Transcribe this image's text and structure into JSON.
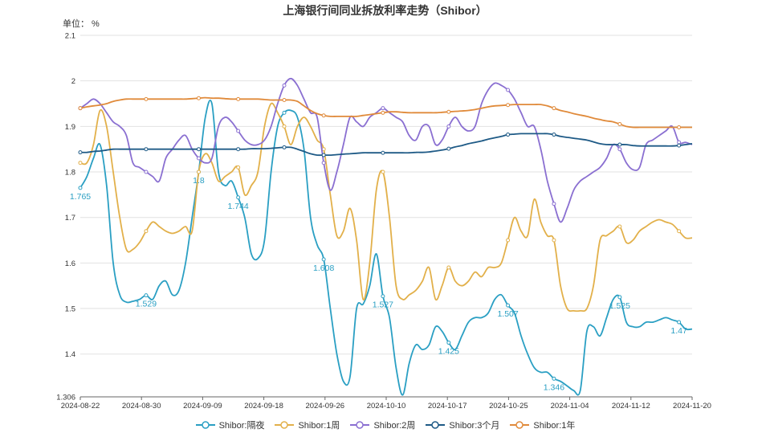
{
  "title": "上海银行间同业拆放利率走势（Shibor）",
  "unit": "单位： %",
  "chart_data": {
    "type": "line",
    "title": "上海银行间同业拆放利率走势（Shibor）",
    "ylabel": "单位： %",
    "ylim": [
      1.306,
      2.1
    ],
    "y_ticks": [
      "1.306",
      "1.4",
      "1.5",
      "1.6",
      "1.7",
      "1.8",
      "1.9",
      "2",
      "2.1"
    ],
    "x_ticks": [
      "2024-08-22",
      "2024-08-30",
      "2024-09-09",
      "2024-09-18",
      "2024-09-26",
      "2024-10-10",
      "2024-10-17",
      "2024-10-25",
      "2024-11-04",
      "2024-11-12",
      "2024-11-20"
    ],
    "grid": true,
    "legend_position": "bottom",
    "series": [
      {
        "name": "Shibor:隔夜",
        "color": "#2a9fc3",
        "values": [
          1.765,
          1.79,
          1.83,
          1.86,
          1.77,
          1.6,
          1.53,
          1.514,
          1.516,
          1.52,
          1.529,
          1.52,
          1.55,
          1.56,
          1.53,
          1.54,
          1.6,
          1.7,
          1.8,
          1.92,
          1.95,
          1.8,
          1.77,
          1.78,
          1.744,
          1.7,
          1.62,
          1.61,
          1.65,
          1.8,
          1.9,
          1.93,
          1.935,
          1.92,
          1.85,
          1.7,
          1.64,
          1.608,
          1.5,
          1.4,
          1.34,
          1.35,
          1.5,
          1.51,
          1.55,
          1.62,
          1.527,
          1.48,
          1.37,
          1.31,
          1.38,
          1.42,
          1.41,
          1.42,
          1.46,
          1.45,
          1.425,
          1.41,
          1.44,
          1.47,
          1.48,
          1.48,
          1.49,
          1.52,
          1.53,
          1.507,
          1.49,
          1.44,
          1.4,
          1.37,
          1.36,
          1.36,
          1.346,
          1.34,
          1.33,
          1.32,
          1.32,
          1.45,
          1.46,
          1.44,
          1.48,
          1.52,
          1.525,
          1.47,
          1.46,
          1.46,
          1.47,
          1.47,
          1.475,
          1.48,
          1.475,
          1.47,
          1.455,
          1.455
        ]
      },
      {
        "name": "Shibor:1周",
        "color": "#e2b04a",
        "values": [
          1.82,
          1.82,
          1.86,
          1.935,
          1.9,
          1.8,
          1.7,
          1.63,
          1.63,
          1.645,
          1.67,
          1.69,
          1.68,
          1.67,
          1.665,
          1.67,
          1.68,
          1.67,
          1.8,
          1.84,
          1.82,
          1.78,
          1.79,
          1.8,
          1.81,
          1.75,
          1.77,
          1.8,
          1.9,
          1.95,
          1.93,
          1.9,
          1.86,
          1.9,
          1.92,
          1.9,
          1.87,
          1.85,
          1.75,
          1.66,
          1.67,
          1.72,
          1.65,
          1.52,
          1.6,
          1.76,
          1.8,
          1.7,
          1.55,
          1.52,
          1.53,
          1.54,
          1.56,
          1.59,
          1.52,
          1.55,
          1.59,
          1.56,
          1.55,
          1.56,
          1.58,
          1.57,
          1.59,
          1.59,
          1.6,
          1.65,
          1.7,
          1.67,
          1.66,
          1.74,
          1.69,
          1.66,
          1.65,
          1.55,
          1.5,
          1.495,
          1.495,
          1.5,
          1.55,
          1.65,
          1.66,
          1.67,
          1.68,
          1.645,
          1.65,
          1.67,
          1.68,
          1.69,
          1.695,
          1.69,
          1.685,
          1.67,
          1.655,
          1.655
        ]
      },
      {
        "name": "Shibor:2周",
        "color": "#8a6fd1",
        "values": [
          1.94,
          1.95,
          1.96,
          1.95,
          1.93,
          1.91,
          1.9,
          1.88,
          1.82,
          1.81,
          1.8,
          1.79,
          1.78,
          1.83,
          1.85,
          1.87,
          1.88,
          1.85,
          1.83,
          1.82,
          1.83,
          1.9,
          1.92,
          1.91,
          1.89,
          1.87,
          1.86,
          1.86,
          1.87,
          1.9,
          1.95,
          1.99,
          2.005,
          1.99,
          1.96,
          1.93,
          1.92,
          1.82,
          1.76,
          1.8,
          1.86,
          1.92,
          1.91,
          1.9,
          1.92,
          1.93,
          1.94,
          1.93,
          1.92,
          1.91,
          1.88,
          1.87,
          1.9,
          1.9,
          1.86,
          1.87,
          1.9,
          1.92,
          1.9,
          1.89,
          1.9,
          1.95,
          1.98,
          1.995,
          1.99,
          1.98,
          1.96,
          1.93,
          1.9,
          1.9,
          1.85,
          1.78,
          1.73,
          1.69,
          1.72,
          1.76,
          1.78,
          1.79,
          1.8,
          1.81,
          1.83,
          1.86,
          1.85,
          1.82,
          1.805,
          1.81,
          1.86,
          1.87,
          1.88,
          1.89,
          1.9,
          1.865,
          1.865,
          1.86
        ]
      },
      {
        "name": "Shibor:3个月",
        "color": "#1e5a86",
        "values": [
          1.843,
          1.843,
          1.845,
          1.846,
          1.848,
          1.85,
          1.85,
          1.85,
          1.85,
          1.85,
          1.85,
          1.85,
          1.85,
          1.85,
          1.85,
          1.85,
          1.85,
          1.85,
          1.85,
          1.85,
          1.85,
          1.85,
          1.85,
          1.85,
          1.85,
          1.85,
          1.851,
          1.851,
          1.851,
          1.852,
          1.853,
          1.854,
          1.854,
          1.85,
          1.845,
          1.84,
          1.837,
          1.837,
          1.837,
          1.838,
          1.839,
          1.84,
          1.841,
          1.842,
          1.842,
          1.842,
          1.842,
          1.842,
          1.842,
          1.842,
          1.842,
          1.843,
          1.843,
          1.844,
          1.846,
          1.848,
          1.851,
          1.855,
          1.858,
          1.862,
          1.865,
          1.868,
          1.872,
          1.875,
          1.878,
          1.882,
          1.883,
          1.884,
          1.884,
          1.884,
          1.884,
          1.884,
          1.882,
          1.878,
          1.876,
          1.874,
          1.872,
          1.87,
          1.866,
          1.862,
          1.86,
          1.86,
          1.86,
          1.86,
          1.858,
          1.857,
          1.857,
          1.857,
          1.857,
          1.857,
          1.857,
          1.858,
          1.86,
          1.862
        ]
      },
      {
        "name": "Shibor:1年",
        "color": "#e08a3a",
        "values": [
          1.94,
          1.943,
          1.945,
          1.947,
          1.95,
          1.955,
          1.958,
          1.96,
          1.96,
          1.96,
          1.96,
          1.96,
          1.96,
          1.96,
          1.96,
          1.96,
          1.96,
          1.961,
          1.962,
          1.963,
          1.962,
          1.962,
          1.961,
          1.96,
          1.96,
          1.96,
          1.96,
          1.96,
          1.959,
          1.958,
          1.958,
          1.958,
          1.958,
          1.955,
          1.945,
          1.935,
          1.928,
          1.924,
          1.922,
          1.922,
          1.922,
          1.922,
          1.922,
          1.924,
          1.926,
          1.928,
          1.93,
          1.932,
          1.932,
          1.931,
          1.93,
          1.93,
          1.93,
          1.93,
          1.93,
          1.931,
          1.932,
          1.933,
          1.934,
          1.935,
          1.937,
          1.94,
          1.943,
          1.945,
          1.946,
          1.947,
          1.948,
          1.948,
          1.948,
          1.948,
          1.948,
          1.945,
          1.94,
          1.935,
          1.932,
          1.928,
          1.925,
          1.922,
          1.918,
          1.915,
          1.912,
          1.91,
          1.905,
          1.9,
          1.898,
          1.898,
          1.898,
          1.898,
          1.898,
          1.898,
          1.898,
          1.898,
          1.898,
          1.898
        ]
      }
    ],
    "data_labels": [
      {
        "series": "Shibor:隔夜",
        "index": 0,
        "text": "1.765"
      },
      {
        "series": "Shibor:隔夜",
        "index": 10,
        "text": "1.529"
      },
      {
        "series": "Shibor:隔夜",
        "index": 18,
        "text": "1.8"
      },
      {
        "series": "Shibor:隔夜",
        "index": 24,
        "text": "1.744"
      },
      {
        "series": "Shibor:隔夜",
        "index": 37,
        "text": "1.608"
      },
      {
        "series": "Shibor:隔夜",
        "index": 46,
        "text": "1.527"
      },
      {
        "series": "Shibor:隔夜",
        "index": 56,
        "text": "1.425"
      },
      {
        "series": "Shibor:隔夜",
        "index": 65,
        "text": "1.507"
      },
      {
        "series": "Shibor:隔夜",
        "index": 72,
        "text": "1.346"
      },
      {
        "series": "Shibor:隔夜",
        "index": 82,
        "text": "1.525"
      },
      {
        "series": "Shibor:隔夜",
        "index": 91,
        "text": "1.47"
      }
    ]
  }
}
